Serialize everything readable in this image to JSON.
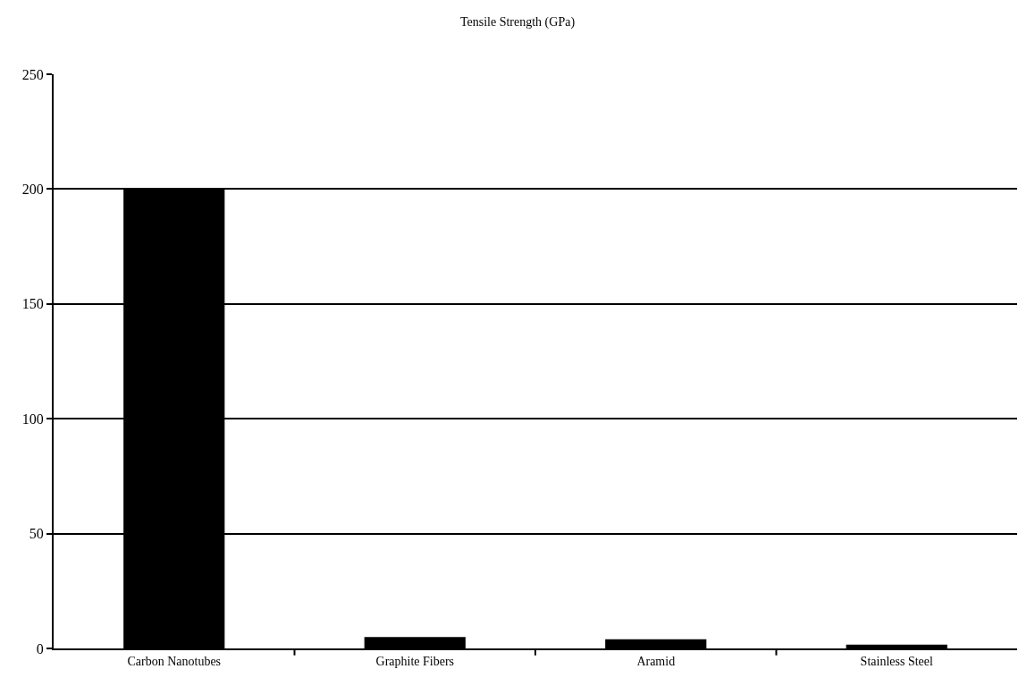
{
  "chart_data": {
    "type": "bar",
    "title": "Tensile Strength (GPa)",
    "categories": [
      "Carbon Nanotubes",
      "Graphite Fibers",
      "Aramid",
      "Stainless Steel"
    ],
    "values": [
      200,
      5,
      4,
      1.7
    ],
    "color": "#000000",
    "ylim": [
      0,
      250
    ],
    "yticks": [
      0,
      50,
      100,
      150,
      200,
      250
    ],
    "grid": "y",
    "legend": false
  }
}
